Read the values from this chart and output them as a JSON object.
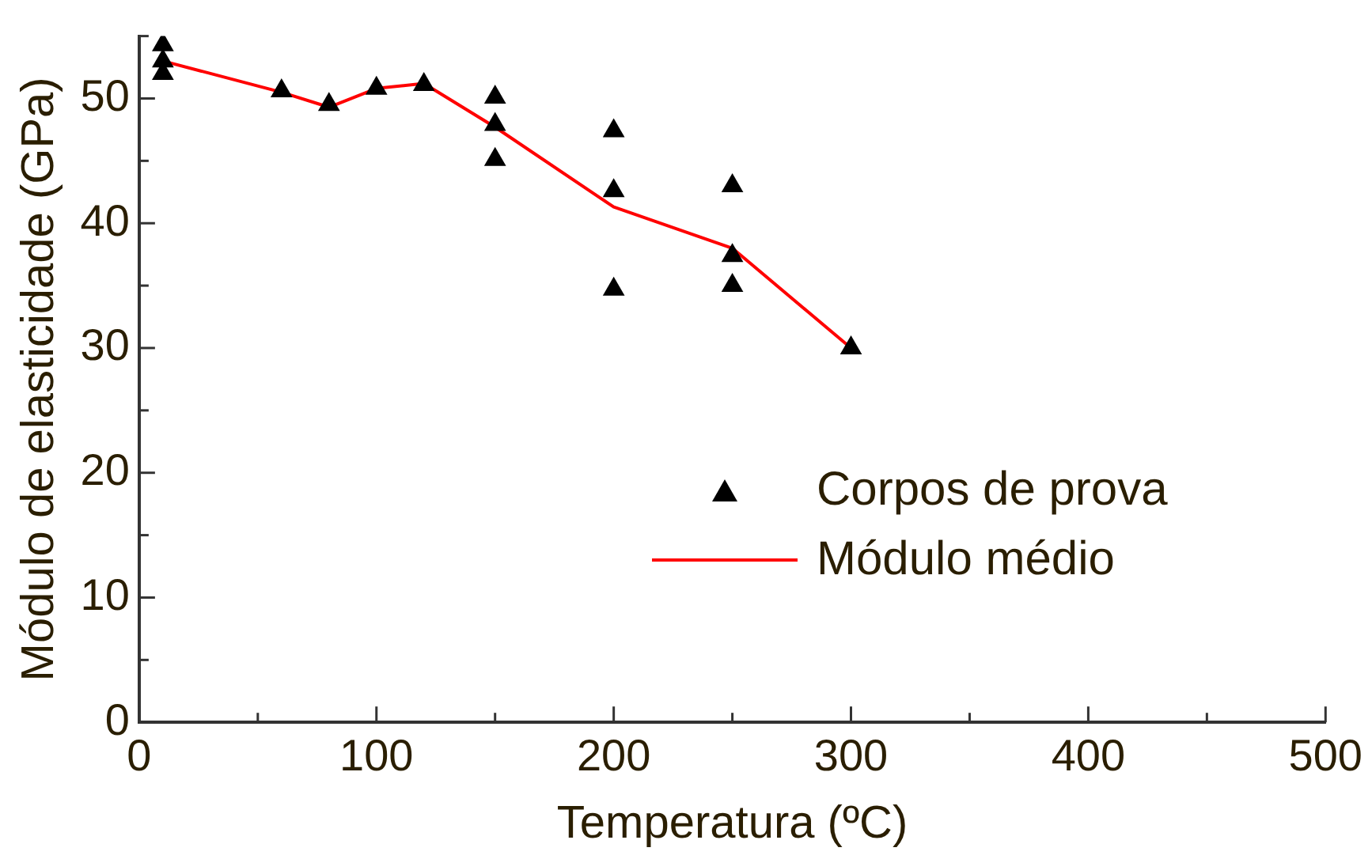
{
  "chart_data": {
    "type": "scatter",
    "xlabel": "Temperatura (ºC)",
    "ylabel": "Módulo de elasticidade (GPa)",
    "xlim": [
      0,
      500
    ],
    "ylim": [
      0,
      55
    ],
    "xticks": [
      0,
      {
        "value": 50,
        "label": null
      },
      100,
      {
        "value": 150,
        "label": null
      },
      200,
      {
        "value": 250,
        "label": null
      },
      300,
      {
        "value": 350,
        "label": null
      },
      400,
      {
        "value": 450,
        "label": null
      },
      500
    ],
    "yticks": [
      0,
      {
        "value": 5,
        "label": null
      },
      10,
      {
        "value": 15,
        "label": null
      },
      20,
      {
        "value": 25,
        "label": null
      },
      30,
      {
        "value": 35,
        "label": null
      },
      40,
      {
        "value": 45,
        "label": null
      },
      50,
      {
        "value": 55,
        "label": null
      }
    ],
    "grid": false,
    "legend": "right",
    "marker": "triangle",
    "series": [
      {
        "name": "Corpos de prova",
        "type": "scatter",
        "color": "#000000",
        "x": [
          10,
          10,
          10,
          60,
          80,
          100,
          120,
          150,
          150,
          150,
          200,
          200,
          200,
          250,
          250,
          250,
          300
        ],
        "values": [
          54.3,
          53,
          52,
          50.6,
          49.5,
          50.8,
          51.1,
          50.1,
          47.9,
          45.1,
          47.4,
          42.6,
          34.7,
          43,
          37.4,
          35,
          30
        ]
      },
      {
        "name": "Módulo médio",
        "type": "line",
        "color": "#ff0000",
        "marker": "none",
        "x": [
          10,
          60,
          80,
          100,
          120,
          150,
          200,
          250,
          300
        ],
        "values": [
          53,
          50.5,
          49.3,
          50.8,
          51.2,
          47.7,
          41.3,
          38,
          30
        ]
      }
    ]
  }
}
